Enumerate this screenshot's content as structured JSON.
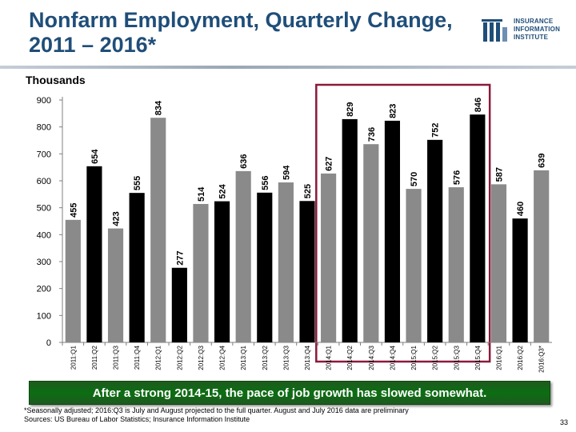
{
  "slide": {
    "title": "Nonfarm Employment, Quarterly Change, 2011 – 2016*",
    "units_label": "Thousands",
    "logo_text": "INSURANCE INFORMATION INSTITUTE",
    "callout": "After a strong 2014-15, the pace of job growth has slowed somewhat.",
    "footnote_line1": "*Seasonally adjusted; 2016:Q3 is July and August projected to the full quarter. August and July 2016 data are preliminary",
    "footnote_line2": "Sources: US Bureau of Labor Statistics; Insurance Information Institute",
    "page_number": "33"
  },
  "colors": {
    "bar_gray": "#8a8a8a",
    "bar_black": "#000000",
    "title_blue": "#1f4e79",
    "highlight_box": "#8b1a3a",
    "callout_green": "#0b6e12"
  },
  "chart_data": {
    "type": "bar",
    "categories": [
      "2011:Q1",
      "2011:Q2",
      "2011:Q3",
      "2011:Q4",
      "2012:Q1",
      "2012:Q2",
      "2012:Q3",
      "2012:Q4",
      "2013:Q1",
      "2013:Q2",
      "2013:Q3",
      "2013:Q4",
      "2014:Q1",
      "2014:Q2",
      "2014:Q3",
      "2014:Q4",
      "2015:Q1",
      "2015:Q2",
      "2015:Q3",
      "2015:Q4",
      "2016:Q1",
      "2016:Q2",
      "2016:Q3*"
    ],
    "values": [
      455,
      654,
      423,
      555,
      834,
      277,
      514,
      524,
      636,
      556,
      594,
      525,
      627,
      829,
      736,
      823,
      570,
      752,
      576,
      846,
      587,
      460,
      639
    ],
    "data_labels": [
      "455",
      "654",
      "423",
      "555",
      "834",
      "277",
      "514",
      "524",
      "636",
      "556",
      "594",
      "525",
      "627",
      "829",
      "736",
      "823",
      "570",
      "752",
      "576",
      "846",
      "587",
      "460",
      "639"
    ],
    "bar_colors": [
      "gray",
      "black",
      "gray",
      "black",
      "gray",
      "black",
      "gray",
      "black",
      "gray",
      "black",
      "gray",
      "black",
      "gray",
      "black",
      "gray",
      "black",
      "gray",
      "black",
      "gray",
      "black",
      "gray",
      "black",
      "gray"
    ],
    "yticks": [
      "0",
      "100",
      "200",
      "300",
      "400",
      "500",
      "600",
      "700",
      "800",
      "900"
    ],
    "ylim": [
      0,
      900
    ],
    "highlighted_range": [
      "2014:Q1",
      "2015:Q4"
    ],
    "grid": false,
    "legend": "none"
  }
}
